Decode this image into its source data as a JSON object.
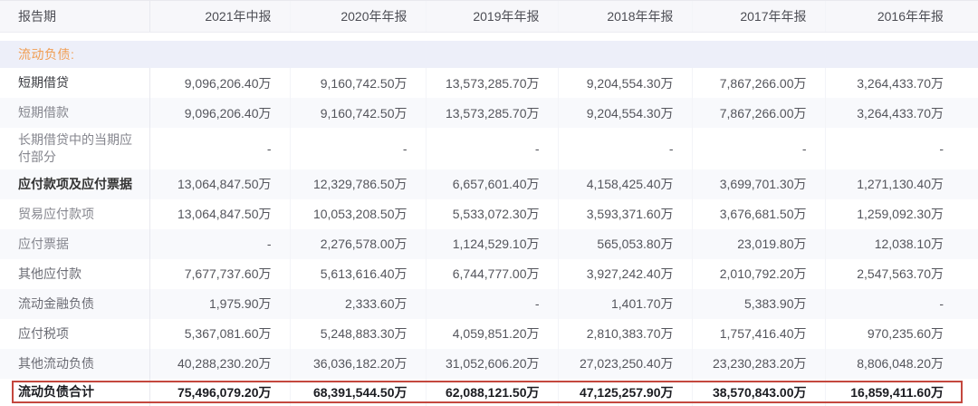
{
  "colors": {
    "section_label_orange": "#f09d52",
    "total_highlight_red": "#c4473e",
    "section_band_bg": "#edeff9",
    "shade_row_bg": "#f8f9fc",
    "header_bg": "#f7f7fa"
  },
  "table": {
    "header": {
      "label": "报告期",
      "periods": [
        "2021年中报",
        "2020年年报",
        "2019年年报",
        "2018年年报",
        "2017年年报",
        "2016年年报"
      ]
    },
    "section": {
      "label": "流动负债:"
    },
    "rows": [
      {
        "label": "短期借贷",
        "style": "group",
        "shade": false,
        "values": [
          "9,096,206.40万",
          "9,160,742.50万",
          "13,573,285.70万",
          "9,204,554.30万",
          "7,867,266.00万",
          "3,264,433.70万"
        ]
      },
      {
        "label": "短期借款",
        "style": "sub",
        "shade": true,
        "values": [
          "9,096,206.40万",
          "9,160,742.50万",
          "13,573,285.70万",
          "9,204,554.30万",
          "7,867,266.00万",
          "3,264,433.70万"
        ]
      },
      {
        "label": "长期借贷中的当期应付部分",
        "style": "sub",
        "shade": false,
        "values": [
          "-",
          "-",
          "-",
          "-",
          "-",
          "-"
        ]
      },
      {
        "label": "应付款项及应付票据",
        "style": "group-bold",
        "shade": true,
        "values": [
          "13,064,847.50万",
          "12,329,786.50万",
          "6,657,601.40万",
          "4,158,425.40万",
          "3,699,701.30万",
          "1,271,130.40万"
        ]
      },
      {
        "label": "贸易应付款项",
        "style": "sub",
        "shade": false,
        "values": [
          "13,064,847.50万",
          "10,053,208.50万",
          "5,533,072.30万",
          "3,593,371.60万",
          "3,676,681.50万",
          "1,259,092.30万"
        ]
      },
      {
        "label": "应付票据",
        "style": "sub",
        "shade": true,
        "values": [
          "-",
          "2,276,578.00万",
          "1,124,529.10万",
          "565,053.80万",
          "23,019.80万",
          "12,038.10万"
        ]
      },
      {
        "label": "其他应付款",
        "style": "item",
        "shade": false,
        "values": [
          "7,677,737.60万",
          "5,613,616.40万",
          "6,744,777.00万",
          "3,927,242.40万",
          "2,010,792.20万",
          "2,547,563.70万"
        ]
      },
      {
        "label": "流动金融负债",
        "style": "item",
        "shade": true,
        "values": [
          "1,975.90万",
          "2,333.60万",
          "-",
          "1,401.70万",
          "5,383.90万",
          "-"
        ]
      },
      {
        "label": "应付税项",
        "style": "item",
        "shade": false,
        "values": [
          "5,367,081.60万",
          "5,248,883.30万",
          "4,059,851.20万",
          "2,810,383.70万",
          "1,757,416.40万",
          "970,235.60万"
        ]
      },
      {
        "label": "其他流动负债",
        "style": "item",
        "shade": true,
        "values": [
          "40,288,230.20万",
          "36,036,182.20万",
          "31,052,606.20万",
          "27,023,250.40万",
          "23,230,283.20万",
          "8,806,048.20万"
        ]
      },
      {
        "label": "流动负债合计",
        "style": "total",
        "shade": false,
        "values": [
          "75,496,079.20万",
          "68,391,544.50万",
          "62,088,121.50万",
          "47,125,257.90万",
          "38,570,843.00万",
          "16,859,411.60万"
        ]
      }
    ]
  }
}
